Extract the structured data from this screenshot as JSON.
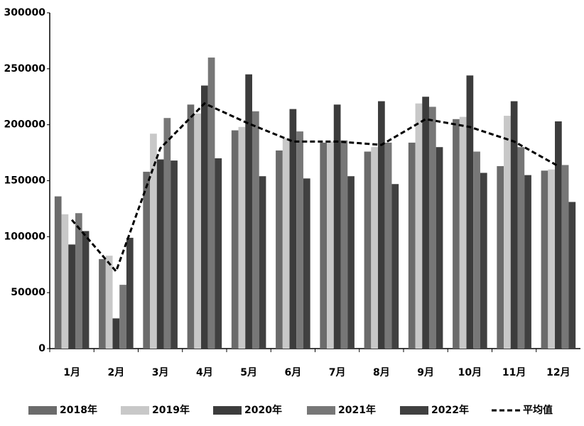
{
  "chart_data": {
    "type": "bar",
    "categories": [
      "1月",
      "2月",
      "3月",
      "4月",
      "5月",
      "6月",
      "7月",
      "8月",
      "9月",
      "10月",
      "11月",
      "12月"
    ],
    "series": [
      {
        "name": "2018年",
        "color": "#6b6b6b",
        "values": [
          136000,
          80000,
          158000,
          218000,
          195000,
          177000,
          184000,
          176000,
          184000,
          205000,
          163000,
          159000
        ]
      },
      {
        "name": "2019年",
        "color": "#c8c8c8",
        "values": [
          120000,
          83000,
          192000,
          210000,
          198000,
          188000,
          185000,
          180000,
          219000,
          207000,
          208000,
          160000
        ]
      },
      {
        "name": "2020年",
        "color": "#3c3c3c",
        "values": [
          93000,
          27000,
          169000,
          235000,
          245000,
          214000,
          218000,
          221000,
          225000,
          244000,
          221000,
          203000
        ]
      },
      {
        "name": "2021年",
        "color": "#777777",
        "values": [
          121000,
          57000,
          206000,
          260000,
          212000,
          194000,
          186000,
          184000,
          216000,
          176000,
          180000,
          164000
        ]
      },
      {
        "name": "2022年",
        "color": "#404040",
        "values": [
          105000,
          99000,
          168000,
          170000,
          154000,
          152000,
          154000,
          147000,
          180000,
          157000,
          155000,
          131000
        ]
      },
      {
        "name": "平均值",
        "type": "line",
        "color": "#000000",
        "values": [
          115000,
          69000,
          179000,
          219000,
          201000,
          185000,
          185000,
          182000,
          205000,
          198000,
          185000,
          163000
        ]
      }
    ],
    "ylim": [
      0,
      300000
    ],
    "yticks": [
      0,
      50000,
      100000,
      150000,
      200000,
      250000,
      300000
    ],
    "grid": false
  }
}
